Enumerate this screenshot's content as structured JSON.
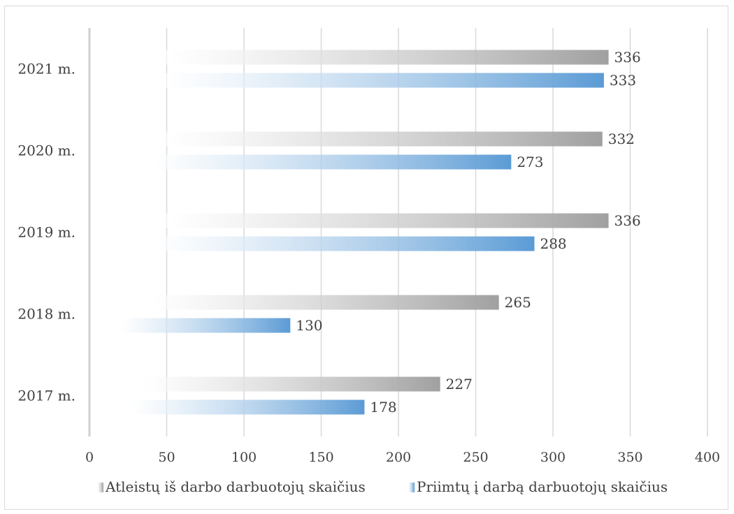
{
  "chart_data": {
    "type": "bar",
    "orientation": "horizontal",
    "categories": [
      "2017 m.",
      "2018 m.",
      "2019 m.",
      "2020 m.",
      "2021 m."
    ],
    "series": [
      {
        "name": "Atleistų iš darbo darbuotojų skaičius",
        "values": [
          227,
          265,
          336,
          332,
          336
        ],
        "color_start": "#ffffff",
        "color_end": "#a0a0a0"
      },
      {
        "name": "Priimtų į darbą darbuotojų skaičius",
        "values": [
          178,
          130,
          288,
          273,
          333
        ],
        "color_start": "#ffffff",
        "color_end": "#5b9bd5"
      }
    ],
    "xlim": [
      0,
      400
    ],
    "x_ticks": [
      "0",
      "50",
      "100",
      "150",
      "200",
      "250",
      "300",
      "350",
      "400"
    ],
    "grid": true,
    "legend_position": "bottom",
    "data_labels": true,
    "title": "",
    "xlabel": "",
    "ylabel": ""
  }
}
